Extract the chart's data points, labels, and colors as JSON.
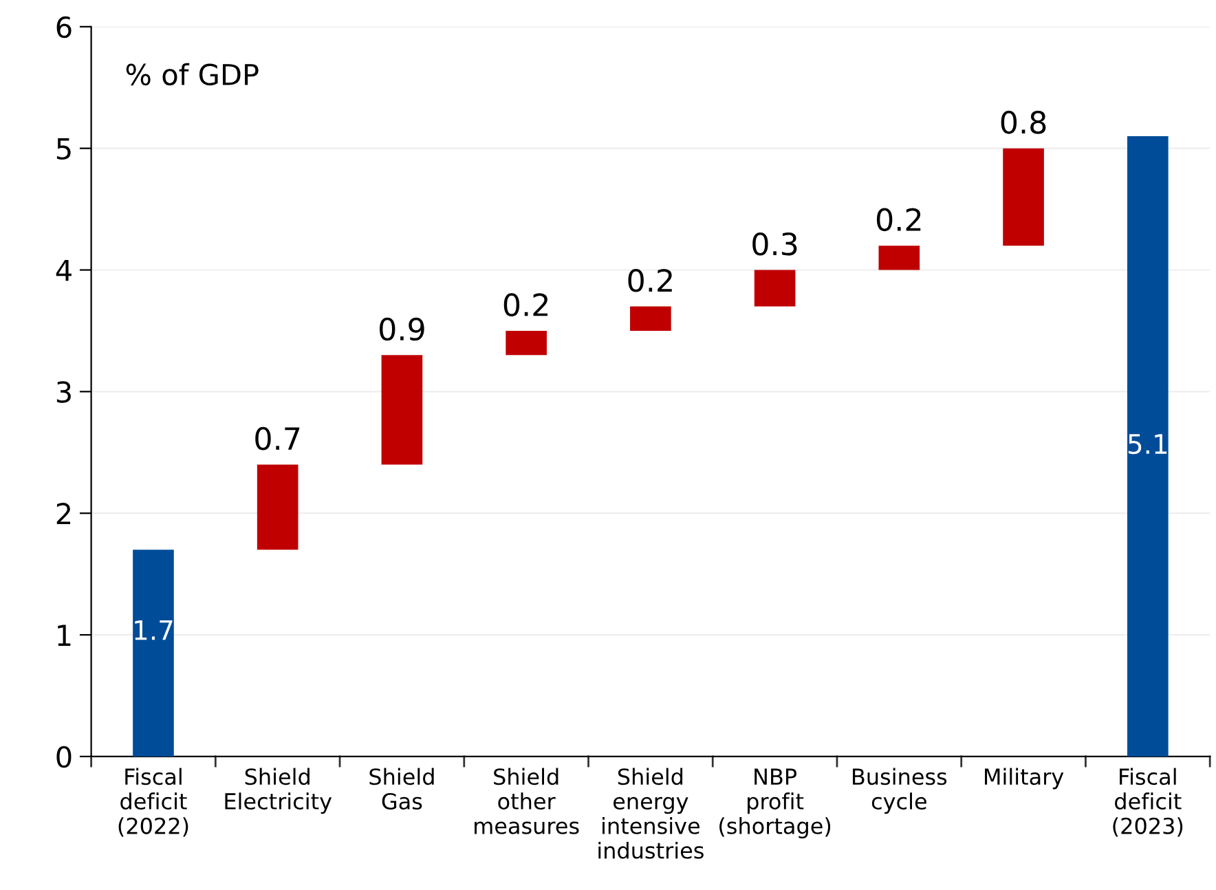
{
  "chart_data": {
    "type": "bar",
    "categories": [
      "Fiscal\ndeficit\n(2022)",
      "Shield\nElectricity",
      "Shield\nGas",
      "Shield\nother\nmeasures",
      "Shield\nenergy\nintensive\nindustries",
      "NBP\nprofit\n(shortage)",
      "Business\ncycle",
      "Military",
      "Fiscal\ndeficit\n(2023)"
    ],
    "values": [
      1.7,
      0.7,
      0.9,
      0.2,
      0.2,
      0.3,
      0.2,
      0.8,
      5.1
    ],
    "base": [
      0,
      1.7,
      2.4,
      3.3,
      3.5,
      3.7,
      4.0,
      4.2,
      0
    ],
    "colors": [
      "#004c99",
      "#c00000",
      "#c00000",
      "#c00000",
      "#c00000",
      "#c00000",
      "#c00000",
      "#c00000",
      "#004c99"
    ],
    "ylim": [
      0,
      6
    ],
    "yticks": [
      0,
      1,
      2,
      3,
      4,
      5,
      6
    ],
    "grid": "y",
    "data_labels": true,
    "annotations": [
      "% of GDP"
    ]
  }
}
